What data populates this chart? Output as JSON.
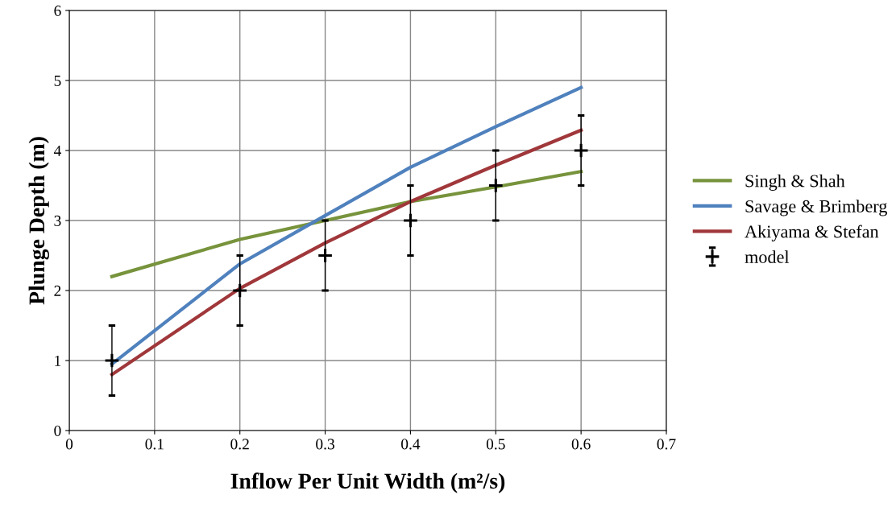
{
  "chart_data": {
    "type": "line",
    "xlabel": "Inflow Per Unit Width (m²/s)",
    "ylabel": "Plunge Depth (m)",
    "x": [
      0.05,
      0.2,
      0.3,
      0.4,
      0.5,
      0.6
    ],
    "series": [
      {
        "name": "Singh & Shah",
        "color": "#77933c",
        "values": [
          2.2,
          2.73,
          3.0,
          3.27,
          3.48,
          3.7
        ]
      },
      {
        "name": "Savage & Brimberg",
        "color": "#4f81bd",
        "values": [
          0.95,
          2.38,
          3.07,
          3.76,
          4.34,
          4.9
        ]
      },
      {
        "name": "Akiyama & Stefan",
        "color": "#a0373a",
        "values": [
          0.8,
          2.03,
          2.68,
          3.27,
          3.79,
          4.29
        ]
      },
      {
        "name": "model",
        "type": "scatter",
        "marker": "cross",
        "color": "#000000",
        "values": [
          1,
          2,
          2.5,
          3,
          3.5,
          4
        ],
        "errors": [
          0.5,
          0.5,
          0.5,
          0.5,
          0.5,
          0.5
        ]
      }
    ],
    "xlim": [
      0,
      0.7
    ],
    "xticks": [
      0,
      0.1,
      0.2,
      0.3,
      0.4,
      0.5,
      0.6,
      0.7
    ],
    "ylim": [
      0,
      6
    ],
    "yticks": [
      0,
      1,
      2,
      3,
      4,
      5,
      6
    ],
    "grid": true,
    "legend": "right"
  }
}
